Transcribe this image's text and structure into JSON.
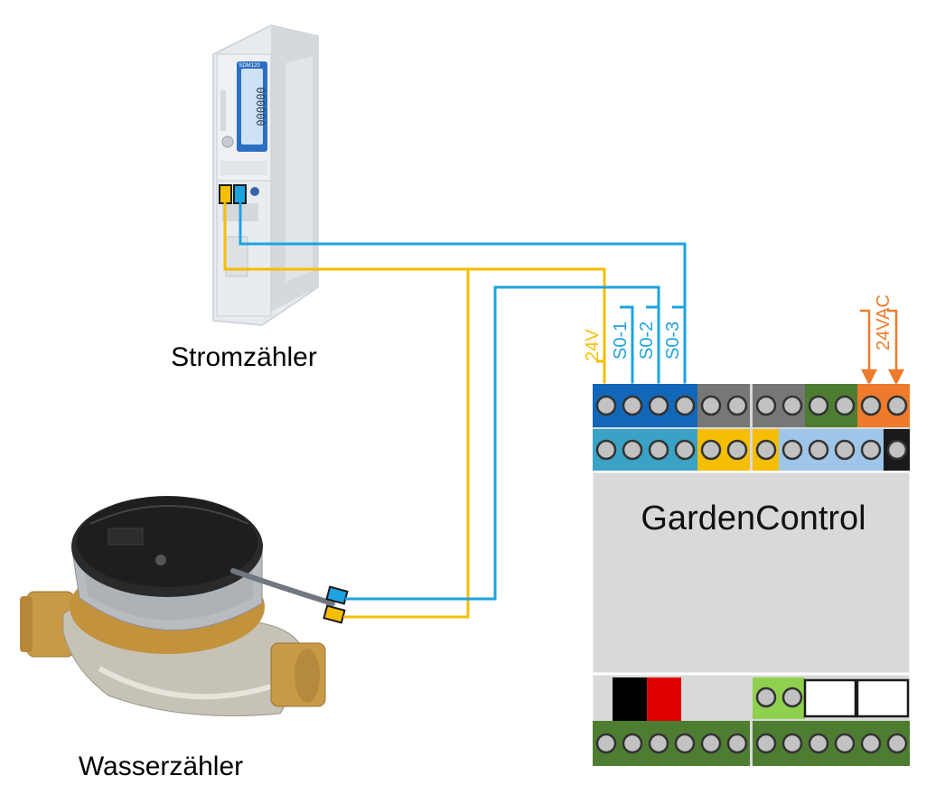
{
  "labels": {
    "electricity_meter": "Stromzähler",
    "water_meter": "Wasserzähler",
    "controller": "GardenControl",
    "wire_24v": "24V",
    "wire_s0_1": "S0-1",
    "wire_s0_2": "S0-2",
    "wire_s0_3": "S0-3",
    "wire_24vac": "24VAC"
  },
  "meter_display": {
    "model": "SDM120",
    "reading": "000000"
  },
  "colors": {
    "wire_yellow": "#f5be00",
    "wire_blue": "#1ca3e0",
    "orange": "#ee7a2b",
    "terminal_dark_blue": "#1167b8",
    "terminal_teal": "#3aa2c4",
    "terminal_grey": "#777777",
    "terminal_green": "#4e7d32",
    "terminal_light_blue": "#9fc6e8",
    "terminal_light_green": "#8fd04e",
    "controller_body": "#d9d9d9"
  }
}
